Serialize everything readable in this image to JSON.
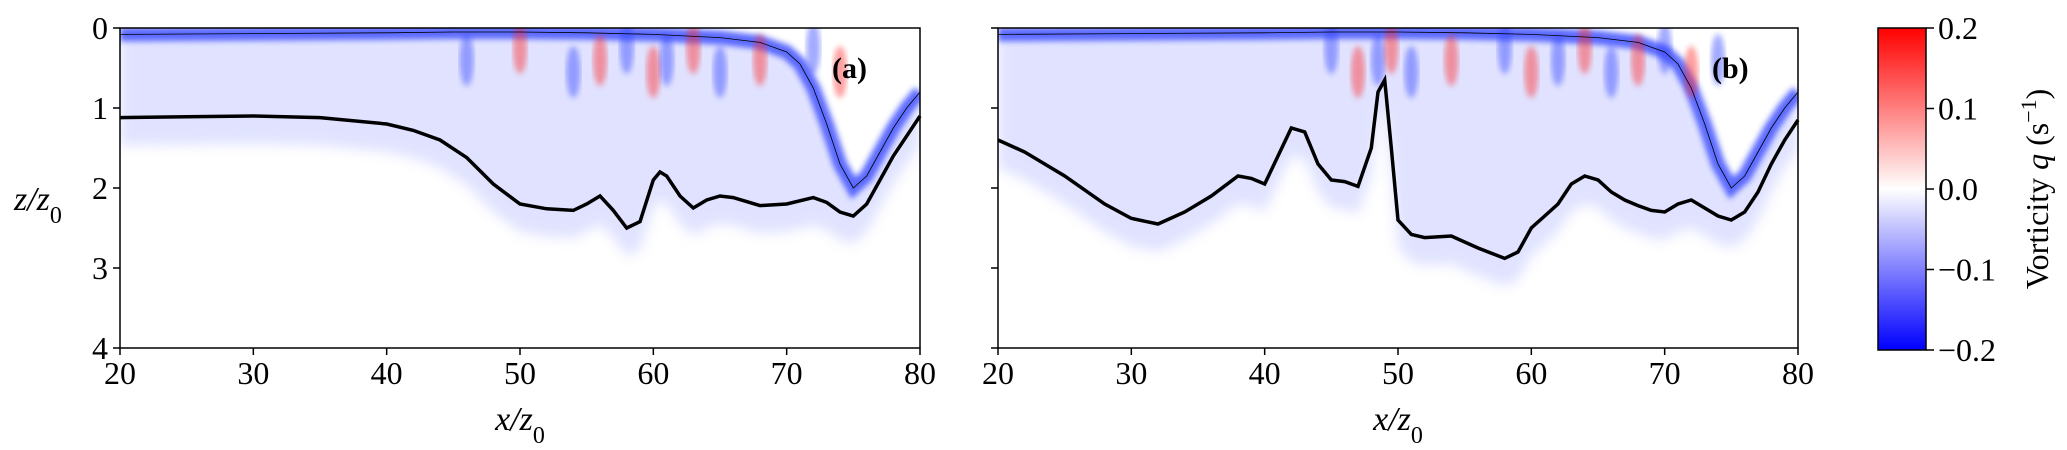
{
  "chart_data": [
    {
      "panel_label": "(a)",
      "type": "heatmap",
      "xlabel": "x/z0",
      "ylabel": "z/z0",
      "xlim": [
        20,
        80
      ],
      "ylim": [
        4,
        0
      ],
      "xticks": [
        "20",
        "30",
        "40",
        "50",
        "60",
        "70",
        "80"
      ],
      "yticks": [
        "0",
        "1",
        "2",
        "3",
        "4"
      ],
      "field": "vorticity",
      "series": [
        {
          "x": [
            20,
            25,
            30,
            35,
            40,
            42,
            44,
            46,
            48,
            50,
            52,
            54,
            55,
            56,
            57,
            58,
            59,
            60,
            60.5,
            61,
            62,
            63,
            64,
            65,
            66,
            68,
            70,
            72,
            73,
            74,
            75,
            76,
            77,
            78,
            79,
            80
          ],
          "y": [
            1.12,
            1.11,
            1.1,
            1.12,
            1.2,
            1.28,
            1.4,
            1.62,
            1.95,
            2.2,
            2.26,
            2.28,
            2.2,
            2.1,
            2.28,
            2.5,
            2.42,
            1.9,
            1.8,
            1.85,
            2.1,
            2.25,
            2.15,
            2.1,
            2.12,
            2.22,
            2.2,
            2.12,
            2.18,
            2.3,
            2.35,
            2.2,
            1.9,
            1.6,
            1.35,
            1.1
          ]
        }
      ],
      "free_surface": {
        "x": [
          20,
          30,
          40,
          45,
          50,
          55,
          60,
          65,
          68,
          70,
          71,
          72,
          73,
          74,
          75,
          76,
          77,
          78,
          79,
          80
        ],
        "y": [
          0.08,
          0.07,
          0.06,
          0.05,
          0.05,
          0.06,
          0.08,
          0.12,
          0.18,
          0.3,
          0.45,
          0.75,
          1.2,
          1.7,
          2.0,
          1.85,
          1.55,
          1.25,
          1.0,
          0.8
        ]
      }
    },
    {
      "panel_label": "(b)",
      "type": "heatmap",
      "xlabel": "x/z0",
      "ylabel": "",
      "xlim": [
        20,
        80
      ],
      "ylim": [
        4,
        0
      ],
      "xticks": [
        "20",
        "30",
        "40",
        "50",
        "60",
        "70",
        "80"
      ],
      "yticks": [
        "",
        "",
        "",
        "",
        ""
      ],
      "field": "vorticity",
      "series": [
        {
          "x": [
            20,
            22,
            25,
            28,
            30,
            32,
            34,
            36,
            38,
            39,
            40,
            41,
            42,
            43,
            44,
            45,
            46,
            47,
            48,
            48.5,
            49,
            49.5,
            50,
            51,
            52,
            54,
            56,
            58,
            59,
            60,
            61,
            62,
            63,
            64,
            65,
            66,
            67,
            68,
            69,
            70,
            71,
            72,
            73,
            74,
            75,
            76,
            77,
            78,
            79,
            80
          ],
          "y": [
            1.4,
            1.55,
            1.85,
            2.2,
            2.38,
            2.45,
            2.3,
            2.1,
            1.85,
            1.88,
            1.95,
            1.6,
            1.25,
            1.3,
            1.7,
            1.9,
            1.92,
            1.98,
            1.5,
            0.8,
            0.65,
            1.5,
            2.4,
            2.58,
            2.62,
            2.6,
            2.75,
            2.88,
            2.8,
            2.5,
            2.35,
            2.2,
            1.95,
            1.85,
            1.9,
            2.05,
            2.15,
            2.22,
            2.28,
            2.3,
            2.2,
            2.15,
            2.25,
            2.35,
            2.4,
            2.3,
            2.05,
            1.7,
            1.4,
            1.15
          ]
        }
      ],
      "free_surface": {
        "x": [
          20,
          30,
          40,
          45,
          50,
          55,
          60,
          65,
          68,
          70,
          71,
          72,
          73,
          74,
          75,
          76,
          77,
          78,
          79,
          80
        ],
        "y": [
          0.08,
          0.07,
          0.06,
          0.05,
          0.05,
          0.06,
          0.08,
          0.12,
          0.18,
          0.3,
          0.45,
          0.75,
          1.2,
          1.7,
          2.0,
          1.85,
          1.55,
          1.25,
          1.0,
          0.8
        ]
      }
    }
  ],
  "colorbar": {
    "title_prefix": "Vorticity",
    "title_symbol": "q",
    "title_unit": "(s",
    "title_exp": "−1",
    "title_close": ")",
    "range": [
      -0.2,
      0.2
    ],
    "ticks": [
      "0.2",
      "0.1",
      "0.0",
      "−0.1",
      "−0.2"
    ],
    "colors": {
      "min": "#0000ff",
      "mid": "#ffffff",
      "max": "#ff0000"
    }
  }
}
